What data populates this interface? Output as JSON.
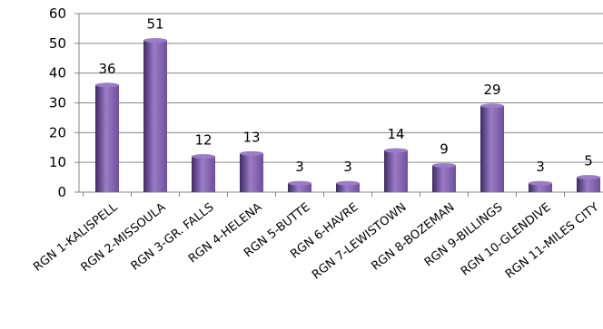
{
  "chart_data": {
    "type": "bar",
    "categories": [
      "RGN 1-KALISPELL",
      "RGN 2-MISSOULA",
      "RGN 3-GR. FALLS",
      "RGN 4-HELENA",
      "RGN 5-BUTTE",
      "RGN 6-HAVRE",
      "RGN 7-LEWISTOWN",
      "RGN 8-BOZEMAN",
      "RGN 9-BILLINGS",
      "RGN 10-GLENDIVE",
      "RGN 11-MILES CITY"
    ],
    "values": [
      36,
      51,
      12,
      13,
      3,
      3,
      14,
      9,
      29,
      3,
      5
    ],
    "ylim": [
      0,
      60
    ],
    "yticks": [
      0,
      10,
      20,
      30,
      40,
      50,
      60
    ],
    "grid": true,
    "legend": "none",
    "bar_color": "#6f4f9c",
    "bar_highlight": "#9b7cc6",
    "bar_shadow": "#3f2a62"
  }
}
